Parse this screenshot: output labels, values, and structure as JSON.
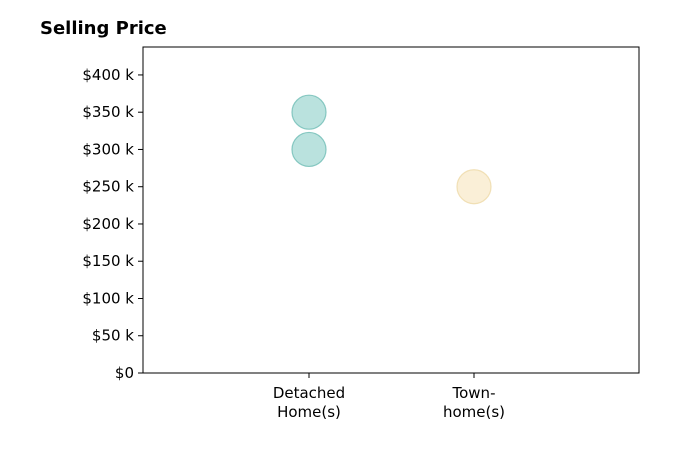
{
  "chart_data": {
    "type": "scatter",
    "title": "Selling Price",
    "xlabel": "",
    "ylabel": "",
    "categories": [
      [
        "Detached",
        "Home(s)"
      ],
      [
        "Town-",
        "home(s)"
      ]
    ],
    "ylim": [
      0,
      437500
    ],
    "yticks": [
      0,
      50000,
      100000,
      150000,
      200000,
      250000,
      300000,
      350000,
      400000
    ],
    "ytick_labels": [
      "$0",
      "$50 k",
      "$100 k",
      "$150 k",
      "$200 k",
      "$250 k",
      "$300 k",
      "$350 k",
      "$400 k"
    ],
    "grid": false,
    "series": [
      {
        "category_index": 0,
        "color": "#8ccfc8",
        "stroke": "#6fbdb5",
        "values": [
          350000,
          300000
        ]
      },
      {
        "category_index": 1,
        "color": "#f6e4bd",
        "stroke": "#eed9a8",
        "values": [
          250000
        ]
      }
    ]
  }
}
